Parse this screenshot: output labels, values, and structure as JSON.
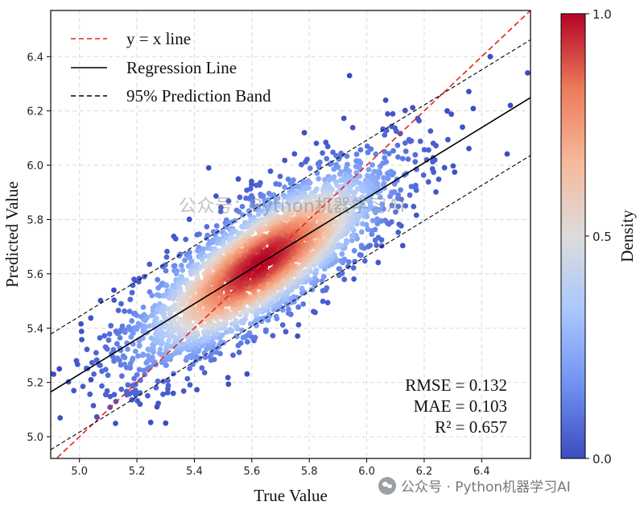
{
  "chart_data": {
    "type": "scatter",
    "title": "",
    "xlabel": "True Value",
    "ylabel": "Predicted Value",
    "xlim": [
      4.9,
      6.57
    ],
    "ylim": [
      4.92,
      6.57
    ],
    "xticks": [
      "5.0",
      "5.2",
      "5.4",
      "5.6",
      "5.8",
      "6.0",
      "6.2",
      "6.4"
    ],
    "yticks": [
      "5.0",
      "5.2",
      "5.4",
      "5.6",
      "5.8",
      "6.0",
      "6.2",
      "6.4"
    ],
    "grid": true,
    "legend_position": "top-left",
    "legend": [
      {
        "label": "y = x line",
        "style": "dashed",
        "color": "#e8221c"
      },
      {
        "label": "Regression Line",
        "style": "solid",
        "color": "#000000"
      },
      {
        "label": "95% Prediction Band",
        "style": "dashed",
        "color": "#000000"
      }
    ],
    "identity_line": {
      "slope": 1.0,
      "intercept": 0.0
    },
    "regression_line": {
      "slope": 0.649,
      "intercept": 1.985
    },
    "prediction_band_offset": 0.213,
    "cloud_center": {
      "x": 5.63,
      "y": 5.64
    },
    "metrics": [
      "RMSE = 0.132",
      "MAE = 0.103",
      "R² = 0.657"
    ],
    "colorbar": {
      "label": "Density",
      "ticks": [
        "0.0",
        "0.5",
        "1.0"
      ],
      "colors": [
        "#3b4cc0",
        "#7092f3",
        "#aac7fd",
        "#dddcdc",
        "#f6b99b",
        "#ec7a5a",
        "#b40426"
      ]
    },
    "outlier_points": [
      {
        "x": 4.91,
        "y": 5.23
      },
      {
        "x": 4.93,
        "y": 5.25
      },
      {
        "x": 5.04,
        "y": 5.21
      },
      {
        "x": 5.3,
        "y": 5.05
      },
      {
        "x": 5.27,
        "y": 5.11
      },
      {
        "x": 5.12,
        "y": 5.54
      },
      {
        "x": 6.28,
        "y": 6.2
      },
      {
        "x": 6.43,
        "y": 6.4
      },
      {
        "x": 6.56,
        "y": 6.34
      },
      {
        "x": 6.5,
        "y": 6.22
      },
      {
        "x": 5.94,
        "y": 6.33
      },
      {
        "x": 5.45,
        "y": 5.99
      }
    ]
  },
  "watermarks": {
    "center": "公众号：Python机器学习AI",
    "corner": "公众号 · Python机器学习AI"
  }
}
